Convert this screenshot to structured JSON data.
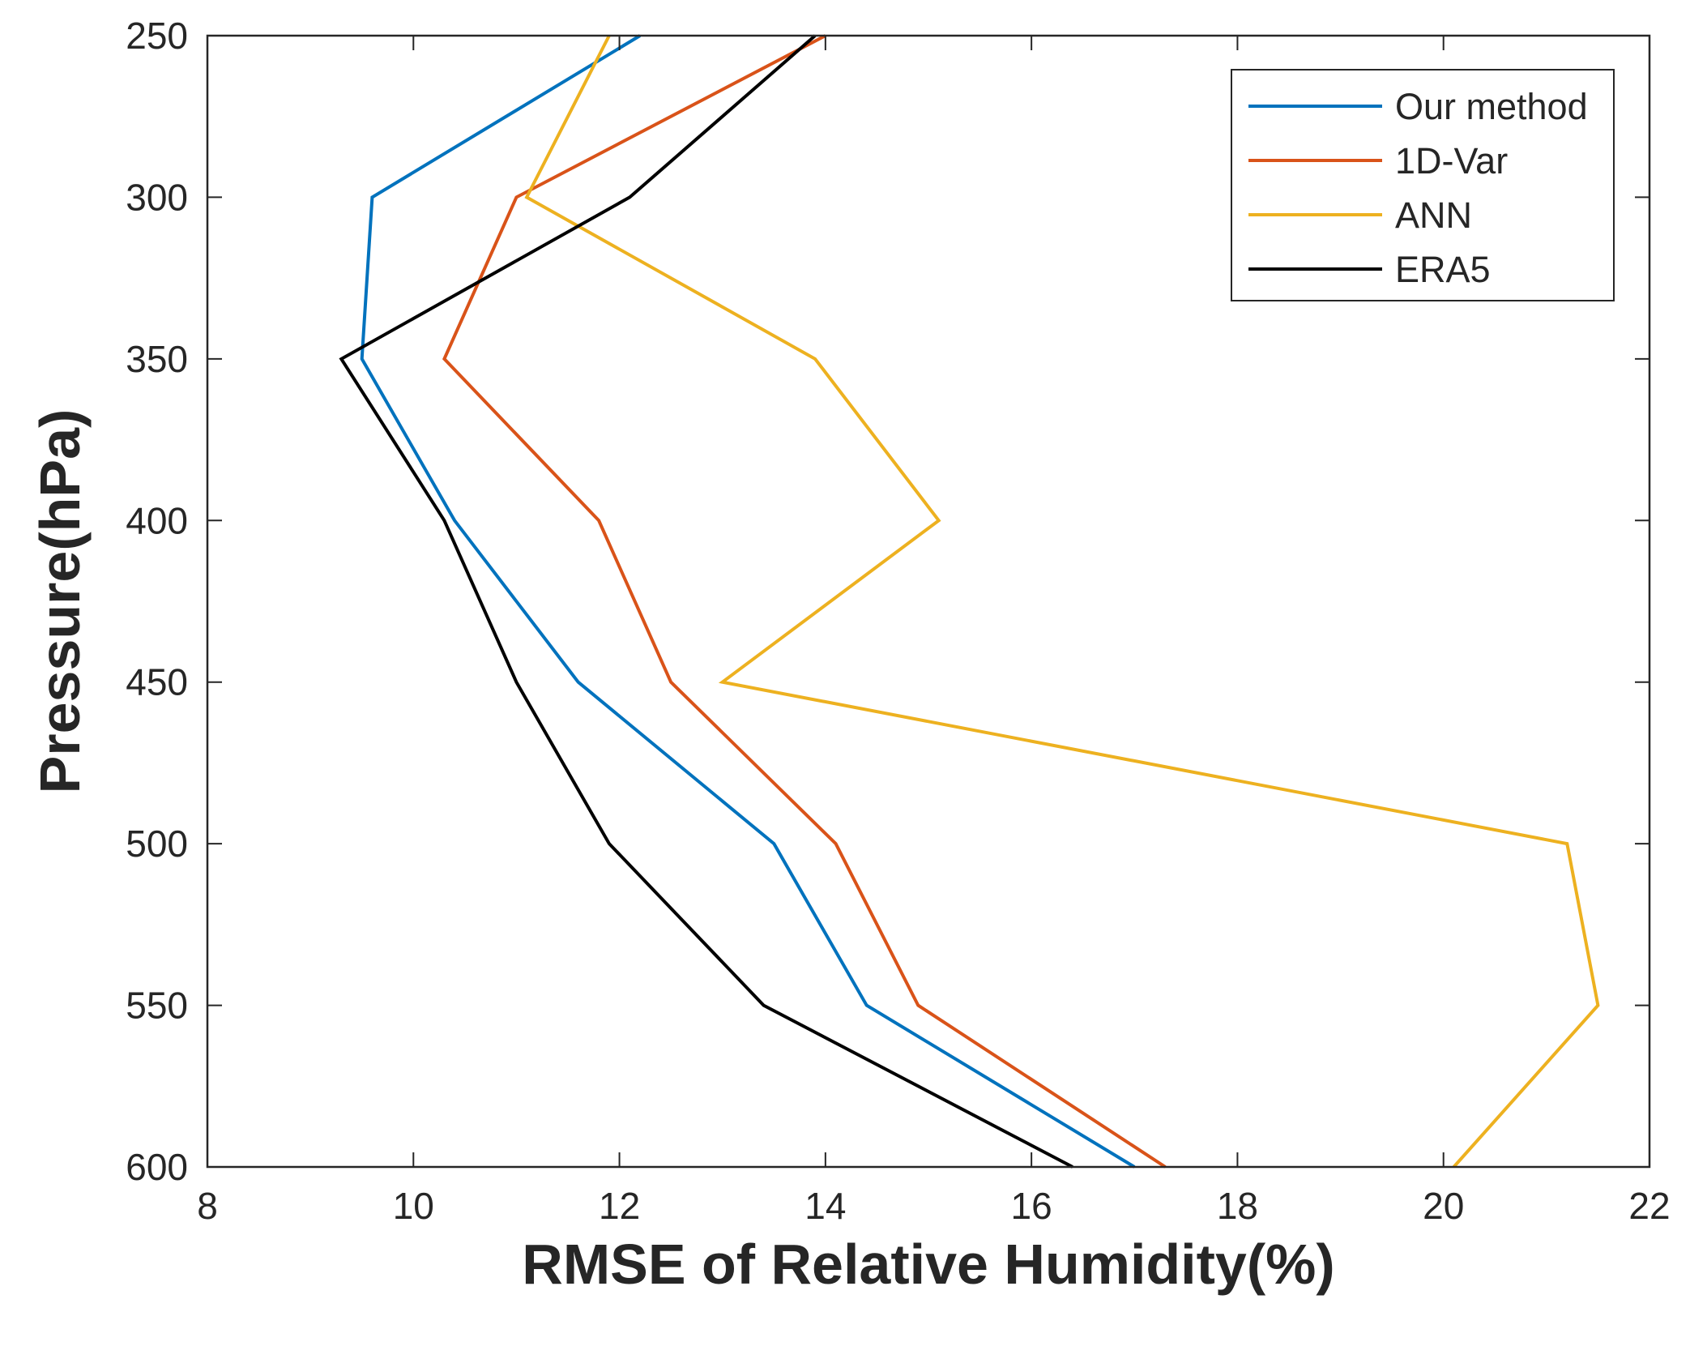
{
  "chart_data": {
    "type": "line",
    "title": "",
    "xlabel": "RMSE of Relative Humidity(%)",
    "ylabel": "Pressure(hPa)",
    "xlim": [
      8,
      22
    ],
    "ylim": [
      250,
      600
    ],
    "y_reversed": true,
    "x_ticks": [
      "8",
      "10",
      "12",
      "14",
      "16",
      "18",
      "20",
      "22"
    ],
    "y_ticks": [
      "250",
      "300",
      "350",
      "400",
      "450",
      "500",
      "550",
      "600"
    ],
    "pressure_levels": [
      250,
      300,
      350,
      400,
      450,
      500,
      550,
      600
    ],
    "grid": false,
    "legend_position": "top-right",
    "series": [
      {
        "name": "Our method",
        "color": "#0072BD",
        "values": [
          12.2,
          9.6,
          9.5,
          10.4,
          11.6,
          13.5,
          14.4,
          17.0
        ]
      },
      {
        "name": "1D-Var",
        "color": "#D95319",
        "values": [
          14.0,
          11.0,
          10.3,
          11.8,
          12.5,
          14.1,
          14.9,
          17.3
        ]
      },
      {
        "name": "ANN",
        "color": "#EDB120",
        "values": [
          11.9,
          11.1,
          13.9,
          15.1,
          13.0,
          21.2,
          21.5,
          20.1
        ]
      },
      {
        "name": "ERA5",
        "color": "#000000",
        "values": [
          13.9,
          12.1,
          9.3,
          10.3,
          11.0,
          11.9,
          13.4,
          16.4
        ]
      }
    ]
  }
}
